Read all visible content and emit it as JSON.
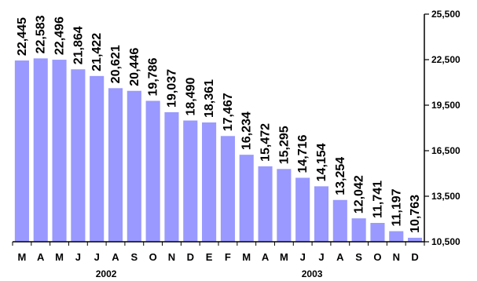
{
  "chart_data": {
    "type": "bar",
    "categories": [
      "M",
      "A",
      "M",
      "J",
      "J",
      "A",
      "S",
      "O",
      "N",
      "D",
      "E",
      "F",
      "M",
      "A",
      "M",
      "J",
      "J",
      "A",
      "S",
      "O",
      "N",
      "D"
    ],
    "values": [
      22445,
      22583,
      22496,
      21864,
      21422,
      20621,
      20446,
      19786,
      19037,
      18490,
      18361,
      17467,
      16234,
      15472,
      15295,
      14716,
      14154,
      13254,
      12042,
      11741,
      11197,
      10763
    ],
    "value_labels": [
      "22,445",
      "22,583",
      "22,496",
      "21,864",
      "21,422",
      "20,621",
      "20,446",
      "19,786",
      "19,037",
      "18,490",
      "18,361",
      "17,467",
      "16,234",
      "15,472",
      "15,295",
      "14,716",
      "14,154",
      "13,254",
      "12,042",
      "11,741",
      "11,197",
      "10,763"
    ],
    "year_groups": [
      {
        "label": "2002",
        "start": 0,
        "end": 9
      },
      {
        "label": "2003",
        "start": 10,
        "end": 21
      }
    ],
    "ylim": [
      10500,
      25500
    ],
    "yticks": [
      10500,
      13500,
      16500,
      19500,
      22500,
      25500
    ],
    "ytick_labels": [
      "10,500",
      "13,500",
      "16,500",
      "19,500",
      "22,500",
      "25,500"
    ],
    "y_axis_side": "right",
    "grid": false,
    "legend": "none",
    "bar_color": "#9999FF",
    "title": "",
    "xlabel": "",
    "ylabel": ""
  }
}
